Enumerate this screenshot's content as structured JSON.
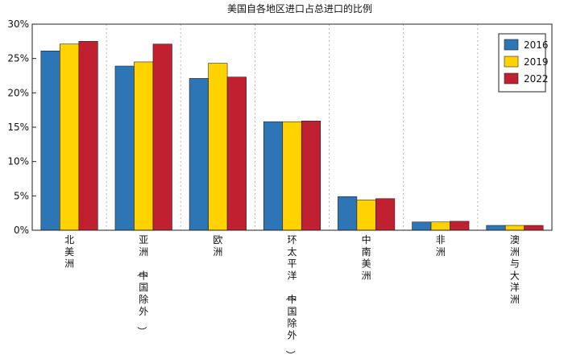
{
  "chart_data": {
    "type": "bar",
    "title": "美国自各地区进口占总进口的比例",
    "categories": [
      "北美洲",
      "亚洲（中国除外）",
      "欧洲",
      "环太平洋（中国除外）",
      "中南美洲",
      "非洲",
      "澳洲与大洋洲"
    ],
    "series": [
      {
        "name": "2016",
        "color": "#2e75b6",
        "values": [
          26.1,
          23.9,
          22.1,
          15.8,
          4.9,
          1.2,
          0.7
        ]
      },
      {
        "name": "2019",
        "color": "#ffd200",
        "values": [
          27.1,
          24.5,
          24.3,
          15.8,
          4.4,
          1.2,
          0.7
        ]
      },
      {
        "name": "2022",
        "color": "#c0202f",
        "values": [
          27.5,
          27.1,
          22.3,
          15.9,
          4.6,
          1.3,
          0.7
        ]
      }
    ],
    "ylim": [
      0,
      30
    ],
    "yticks": [
      "0%",
      "5%",
      "10%",
      "15%",
      "20%",
      "25%",
      "30%"
    ],
    "xlabel": "",
    "ylabel": "",
    "legend_position": "top-right",
    "grid": "vertical-dotted"
  }
}
